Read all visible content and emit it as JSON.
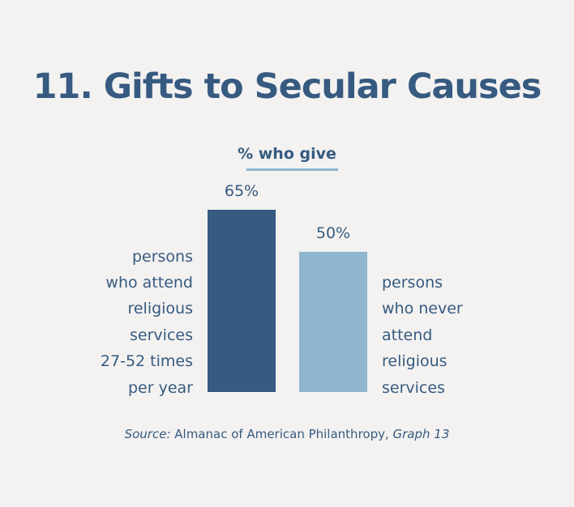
{
  "chart_data": {
    "type": "bar",
    "title": "11. Gifts to Secular Causes",
    "subtitle": "% who give",
    "categories": [
      "persons\nwho attend\nreligious\nservices\n27-52 times\nper year",
      "persons\nwho never\nattend\nreligious\nservices"
    ],
    "values": [
      65,
      50
    ],
    "value_labels": [
      "65%",
      "50%"
    ],
    "colors": [
      "#365a80",
      "#8fb6cf"
    ],
    "ylim": [
      0,
      65
    ],
    "grid": false
  },
  "source": {
    "prefix": "Source:",
    "text": " Almanac of American Philanthropy, ",
    "ref": "Graph 13"
  }
}
